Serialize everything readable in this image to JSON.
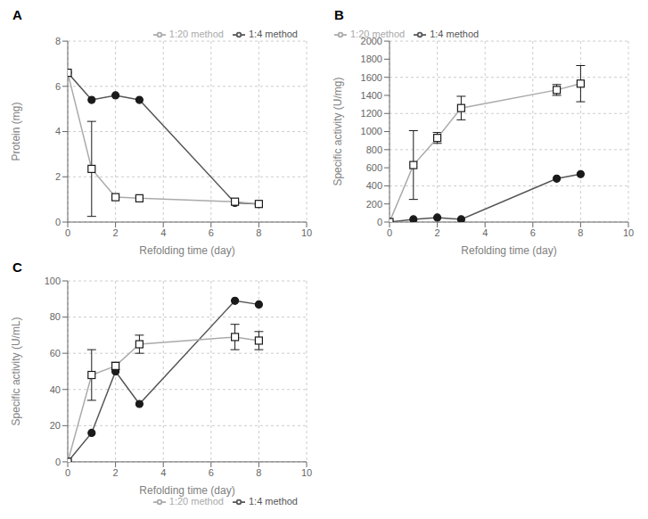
{
  "chart_data": [
    {
      "type": "line",
      "title": "A",
      "xlabel": "Refolding time (day)",
      "ylabel": "Protein (mg)",
      "xlim": [
        0,
        10
      ],
      "ylim": [
        0,
        8
      ],
      "xticks": [
        0,
        2,
        4,
        6,
        8,
        10
      ],
      "yticks": [
        0,
        2,
        4,
        6,
        8
      ],
      "legend": "upper right",
      "series": [
        {
          "name": "1:4 method",
          "x": [
            0,
            1,
            2,
            3,
            7,
            8
          ],
          "values": [
            6.6,
            5.4,
            5.6,
            5.4,
            0.85,
            0.8
          ],
          "yerr": [
            0,
            0,
            0,
            0,
            0,
            0
          ],
          "marker": "circle",
          "color": "#555555"
        },
        {
          "name": "1:20 method",
          "x": [
            0,
            1,
            2,
            3,
            7,
            8
          ],
          "values": [
            6.6,
            2.35,
            1.1,
            1.05,
            0.9,
            0.8
          ],
          "yerr": [
            0,
            2.1,
            0,
            0,
            0,
            0
          ],
          "marker": "open_square",
          "color": "#aaaaaa"
        }
      ]
    },
    {
      "type": "line",
      "title": "B",
      "xlabel": "Refolding time (day)",
      "ylabel": "Specific activity (U/mg)",
      "xlim": [
        0,
        10
      ],
      "ylim": [
        0,
        2000
      ],
      "xticks": [
        0,
        2,
        4,
        6,
        8,
        10
      ],
      "yticks": [
        0,
        200,
        400,
        600,
        800,
        1000,
        1200,
        1400,
        1600,
        1800,
        2000
      ],
      "legend": "upper left",
      "series": [
        {
          "name": "1:4 method",
          "x": [
            0,
            1,
            2,
            3,
            7,
            8
          ],
          "values": [
            0,
            30,
            50,
            30,
            480,
            530
          ],
          "yerr": [
            0,
            0,
            0,
            0,
            0,
            0
          ],
          "marker": "circle",
          "color": "#555555"
        },
        {
          "name": "1:20 method",
          "x": [
            0,
            1,
            2,
            3,
            7,
            8
          ],
          "values": [
            0,
            630,
            930,
            1260,
            1460,
            1530
          ],
          "yerr": [
            0,
            380,
            60,
            130,
            60,
            200
          ],
          "marker": "open_square",
          "color": "#aaaaaa"
        }
      ]
    },
    {
      "type": "line",
      "title": "C",
      "xlabel": "Refolding time (day)",
      "ylabel": "Specific activity (U/mL)",
      "xlim": [
        0,
        10
      ],
      "ylim": [
        0,
        100
      ],
      "xticks": [
        0,
        2,
        4,
        6,
        8,
        10
      ],
      "yticks": [
        0,
        20,
        40,
        60,
        80,
        100
      ],
      "legend": "lower right",
      "series": [
        {
          "name": "1:4 method",
          "x": [
            0,
            1,
            2,
            3,
            7,
            8
          ],
          "values": [
            0,
            16,
            50,
            32,
            89,
            87
          ],
          "yerr": [
            0,
            0,
            0,
            0,
            0,
            0
          ],
          "marker": "circle",
          "color": "#555555"
        },
        {
          "name": "1:20 method",
          "x": [
            0,
            1,
            2,
            3,
            7,
            8
          ],
          "values": [
            0,
            48,
            53,
            65,
            69,
            67
          ],
          "yerr": [
            0,
            14,
            2,
            5,
            7,
            5
          ],
          "marker": "open_square",
          "color": "#aaaaaa"
        }
      ]
    }
  ]
}
